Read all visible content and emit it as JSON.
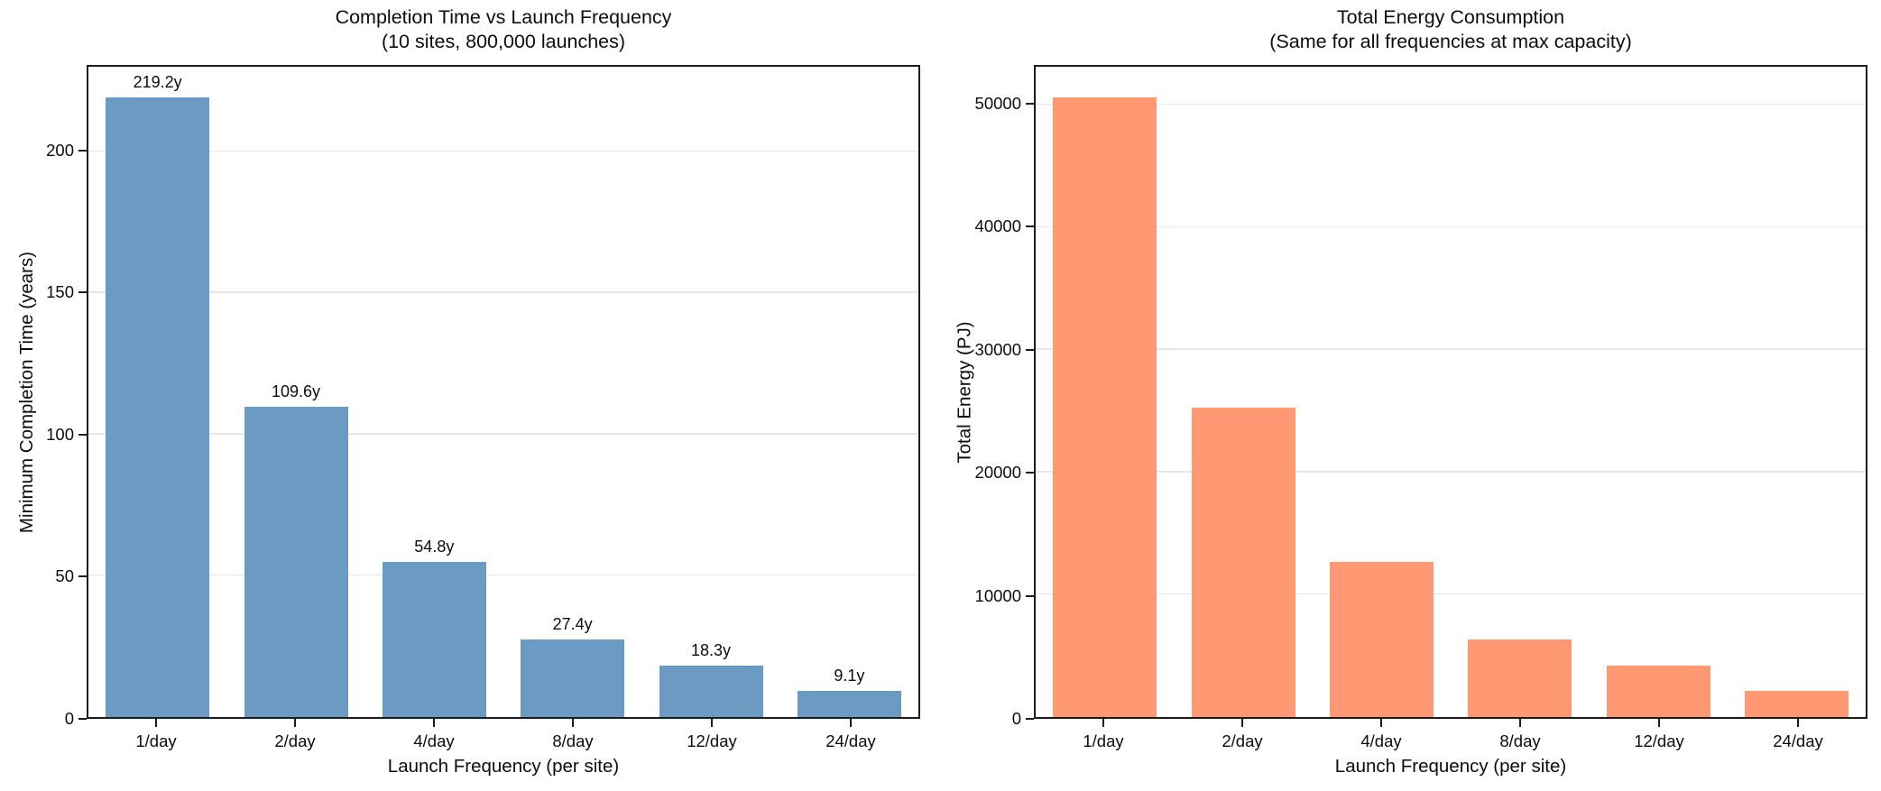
{
  "figure": {
    "background": "#ffffff",
    "grid_color": "#e7e7e7",
    "spine_color": "#1c1c1c",
    "text_color": "#0d0d0d"
  },
  "chart_data": [
    {
      "type": "bar",
      "title": "Completion Time vs Launch Frequency",
      "subtitle": "(10 sites, 800,000 launches)",
      "categories": [
        "1/day",
        "2/day",
        "4/day",
        "8/day",
        "12/day",
        "24/day"
      ],
      "values": [
        219.2,
        109.6,
        54.8,
        27.4,
        18.3,
        9.1
      ],
      "bar_labels": [
        "219.2y",
        "109.6y",
        "54.8y",
        "27.4y",
        "18.3y",
        "9.1y"
      ],
      "xlabel": "Launch Frequency (per site)",
      "ylabel": "Minimum Completion Time (years)",
      "yticks": [
        0,
        50,
        100,
        150,
        200
      ],
      "ytick_labels": [
        "0",
        "50",
        "100",
        "150",
        "200"
      ],
      "ylim": [
        0,
        230
      ],
      "bar_color": "#6b9bc3",
      "grid": true,
      "legend": null
    },
    {
      "type": "bar",
      "title": "Total Energy Consumption",
      "subtitle": "(Same for all frequencies at max capacity)",
      "categories": [
        "1/day",
        "2/day",
        "4/day",
        "8/day",
        "12/day",
        "24/day"
      ],
      "values": [
        50600,
        25300,
        12650,
        6325,
        4217,
        2108
      ],
      "bar_labels": null,
      "xlabel": "Launch Frequency (per site)",
      "ylabel": "Total Energy (PJ)",
      "yticks": [
        0,
        10000,
        20000,
        30000,
        40000,
        50000
      ],
      "ytick_labels": [
        "0",
        "10000",
        "20000",
        "30000",
        "40000",
        "50000"
      ],
      "ylim": [
        0,
        53130
      ],
      "bar_color": "#ff9973",
      "grid": true,
      "legend": null
    }
  ]
}
